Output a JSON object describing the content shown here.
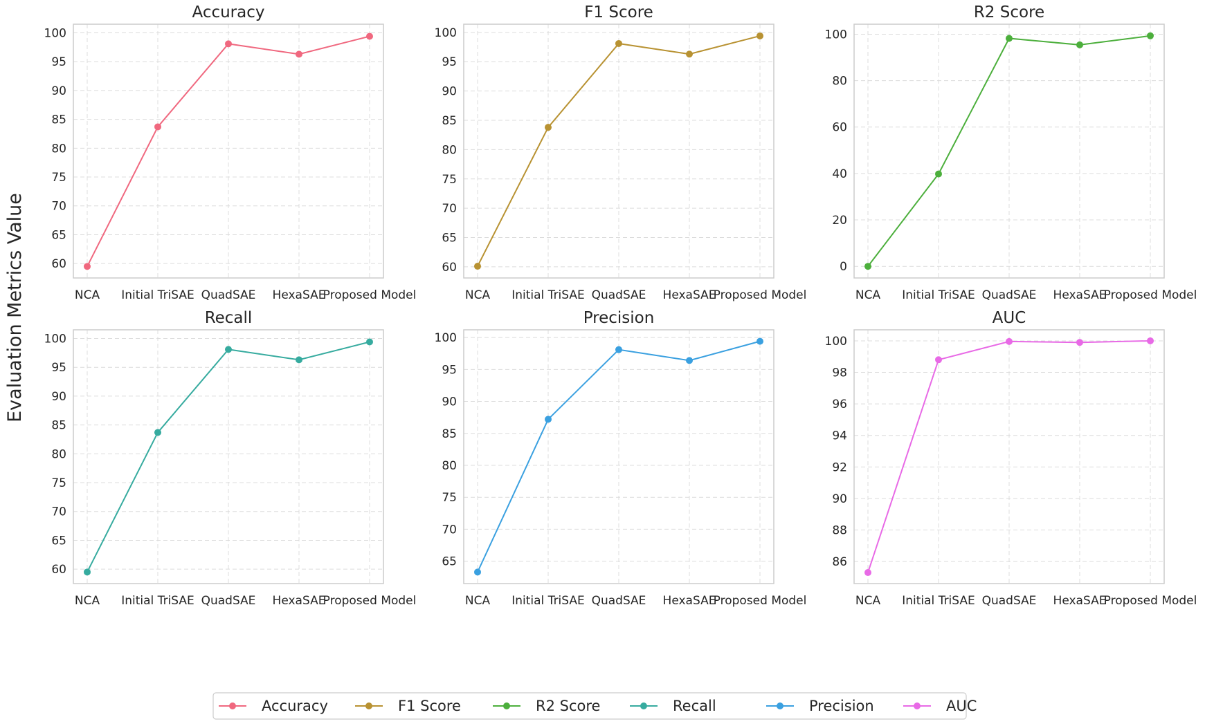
{
  "figure": {
    "ylabel": "Evaluation Metrics Value"
  },
  "chart_data": [
    {
      "type": "line",
      "title": "Accuracy",
      "color": "#f0687f",
      "categories": [
        "NCA",
        "Initial TriSAE",
        "QuadSAE",
        "HexaSAE",
        "Proposed Model"
      ],
      "values": [
        59.5,
        83.7,
        98.1,
        96.3,
        99.4
      ],
      "ylim": [
        57.5,
        101.5
      ],
      "yticks": [
        60,
        65,
        70,
        75,
        80,
        85,
        90,
        95,
        100
      ],
      "grid": true
    },
    {
      "type": "line",
      "title": "F1 Score",
      "color": "#b89232",
      "categories": [
        "NCA",
        "Initial TriSAE",
        "QuadSAE",
        "HexaSAE",
        "Proposed Model"
      ],
      "values": [
        60.1,
        83.8,
        98.1,
        96.3,
        99.4
      ],
      "ylim": [
        58.1,
        101.4
      ],
      "yticks": [
        60,
        65,
        70,
        75,
        80,
        85,
        90,
        95,
        100
      ],
      "grid": true
    },
    {
      "type": "line",
      "title": "R2 Score",
      "color": "#4caf3c",
      "categories": [
        "NCA",
        "Initial TriSAE",
        "QuadSAE",
        "HexaSAE",
        "Proposed Model"
      ],
      "values": [
        0,
        39.8,
        98.2,
        95.4,
        99.3
      ],
      "ylim": [
        -5,
        104.3
      ],
      "yticks": [
        0,
        20,
        40,
        60,
        80,
        100
      ],
      "grid": true
    },
    {
      "type": "line",
      "title": "Recall",
      "color": "#36ab9f",
      "categories": [
        "NCA",
        "Initial TriSAE",
        "QuadSAE",
        "HexaSAE",
        "Proposed Model"
      ],
      "values": [
        59.5,
        83.7,
        98.1,
        96.3,
        99.4
      ],
      "ylim": [
        57.5,
        101.5
      ],
      "yticks": [
        60,
        65,
        70,
        75,
        80,
        85,
        90,
        95,
        100
      ],
      "grid": true
    },
    {
      "type": "line",
      "title": "Precision",
      "color": "#3aa0e0",
      "categories": [
        "NCA",
        "Initial TriSAE",
        "QuadSAE",
        "HexaSAE",
        "Proposed Model"
      ],
      "values": [
        63.3,
        87.2,
        98.1,
        96.4,
        99.4
      ],
      "ylim": [
        61.5,
        101.2
      ],
      "yticks": [
        65,
        70,
        75,
        80,
        85,
        90,
        95,
        100
      ],
      "grid": true
    },
    {
      "type": "line",
      "title": "AUC",
      "color": "#e86ae6",
      "categories": [
        "NCA",
        "Initial TriSAE",
        "QuadSAE",
        "HexaSAE",
        "Proposed Model"
      ],
      "values": [
        85.3,
        98.8,
        99.96,
        99.9,
        100
      ],
      "ylim": [
        84.6,
        100.7
      ],
      "yticks": [
        86,
        88,
        90,
        92,
        94,
        96,
        98,
        100
      ],
      "grid": true
    }
  ],
  "legend": {
    "placement": "bottom-center",
    "entries": [
      "Accuracy",
      "F1 Score",
      "R2 Score",
      "Recall",
      "Precision",
      "AUC"
    ],
    "colors": [
      "#f0687f",
      "#b89232",
      "#4caf3c",
      "#36ab9f",
      "#3aa0e0",
      "#e86ae6"
    ]
  }
}
